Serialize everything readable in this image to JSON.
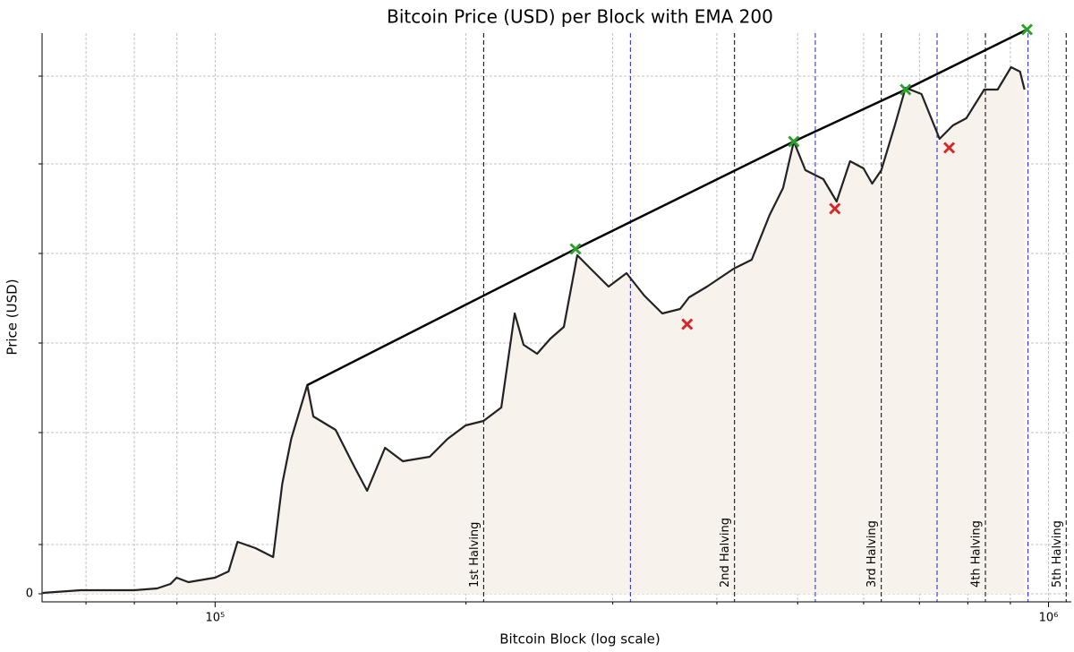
{
  "chart_data": {
    "type": "line",
    "title": "Bitcoin Price (USD) per Block with EMA 200",
    "x_label": "Bitcoin Block (log scale)",
    "y_label": "Price (USD)",
    "x_scale": "log",
    "grid": true,
    "color": "#222222",
    "fill_color": "#f7f3ec",
    "xlim": [
      62000,
      1065000
    ],
    "ylim": [
      -0.09,
      6.26
    ],
    "xticks": [
      {
        "value": 100000,
        "label": "10⁵"
      },
      {
        "value": 1000000,
        "label": "10⁶"
      }
    ],
    "xminorticks": [
      70000,
      80000,
      90000,
      200000,
      300000,
      400000,
      500000,
      600000,
      700000,
      800000,
      900000
    ],
    "yticks": [
      0,
      {
        "value": 0.55,
        "label": null
      },
      {
        "value": 1.8,
        "label": null
      },
      {
        "value": 2.8,
        "label": null
      },
      {
        "value": 3.8,
        "label": null
      },
      {
        "value": 4.8,
        "label": null
      },
      {
        "value": 5.78,
        "label": null
      }
    ],
    "x": [
      62100,
      69000,
      70800,
      80000,
      85200,
      88400,
      89900,
      92900,
      100000,
      103800,
      106400,
      111800,
      117400,
      120400,
      123400,
      129000,
      131200,
      139500,
      146700,
      152200,
      159900,
      168000,
      180900,
      190100,
      199800,
      209900,
      220500,
      228800,
      234500,
      243400,
      252600,
      262100,
      272000,
      282200,
      296600,
      311600,
      327300,
      344000,
      361400,
      370400,
      389300,
      419100,
      440400,
      462800,
      480200,
      494700,
      510800,
      536700,
      556900,
      577900,
      599800,
      614400,
      630000,
      654000,
      673700,
      704100,
      740000,
      767900,
      796900,
      837300,
      868900,
      901700,
      924400,
      935800
    ],
    "values": [
      0.01,
      0.04,
      0.04,
      0.04,
      0.06,
      0.11,
      0.18,
      0.13,
      0.18,
      0.25,
      0.58,
      0.51,
      0.41,
      1.23,
      1.73,
      2.33,
      1.98,
      1.83,
      1.43,
      1.15,
      1.63,
      1.48,
      1.53,
      1.73,
      1.88,
      1.93,
      2.08,
      3.13,
      2.78,
      2.68,
      2.85,
      2.98,
      3.78,
      3.63,
      3.43,
      3.58,
      3.33,
      3.13,
      3.18,
      3.31,
      3.43,
      3.63,
      3.73,
      4.23,
      4.53,
      5.05,
      4.73,
      4.63,
      4.38,
      4.83,
      4.75,
      4.58,
      4.73,
      5.23,
      5.65,
      5.58,
      5.08,
      5.23,
      5.31,
      5.63,
      5.63,
      5.88,
      5.83,
      5.63
    ],
    "trend_line": {
      "color": "#000000",
      "x": [
        129000,
        270700,
        494700,
        673700,
        942300
      ],
      "values": [
        2.33,
        3.85,
        5.05,
        5.63,
        6.3
      ]
    },
    "peaks": {
      "color": "#2ca02c",
      "x": [
        270700,
        494700,
        673700,
        942300
      ],
      "values": [
        3.85,
        5.05,
        5.63,
        6.3
      ]
    },
    "troughs": {
      "color": "#d62728",
      "x": [
        368500,
        554200,
        760000
      ],
      "values": [
        3.01,
        4.3,
        4.98
      ]
    },
    "halvings": {
      "color": "#000000",
      "x": [
        210000,
        420000,
        630000,
        840000,
        1050000
      ],
      "labels": [
        "1st Halving",
        "2nd Halving",
        "3rd Halving",
        "4th Halving",
        "5th Halving"
      ]
    },
    "midpoints": {
      "color": "#2222cc",
      "x": [
        315000,
        525000,
        735000,
        945000
      ]
    }
  }
}
